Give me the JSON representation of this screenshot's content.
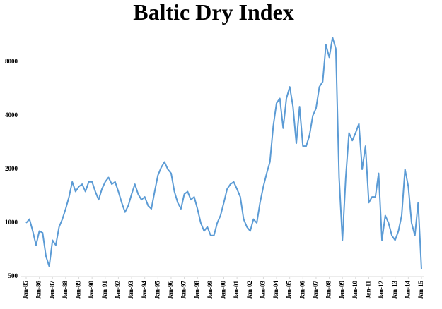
{
  "chart_data": {
    "type": "line",
    "title": "Baltic Dry Index",
    "log_scale": true,
    "grid": false,
    "ylim": [
      500,
      12000
    ],
    "yticks": [
      500,
      1000,
      2000,
      4000,
      8000
    ],
    "xticks": [
      "Jan-85",
      "Jan-86",
      "Jan-87",
      "Jan-88",
      "Jan-89",
      "Jan-90",
      "Jan-91",
      "Jan-92",
      "Jan-93",
      "Jan-94",
      "Jan-95",
      "Jan-96",
      "Jan-97",
      "Jan-98",
      "Jan-99",
      "Jan-00",
      "Jan-01",
      "Jan-02",
      "Jan-03",
      "Jan-04",
      "Jan-05",
      "Jan-06",
      "Jan-07",
      "Jan-08",
      "Jan-09",
      "Jan-10",
      "Jan-11",
      "Jan-12",
      "Jan-13",
      "Jan-14",
      "Jan-15"
    ],
    "x": [
      "Jan-85",
      "Apr-85",
      "Jul-85",
      "Oct-85",
      "Jan-86",
      "Apr-86",
      "Jul-86",
      "Oct-86",
      "Jan-87",
      "Apr-87",
      "Jul-87",
      "Oct-87",
      "Jan-88",
      "Apr-88",
      "Jul-88",
      "Oct-88",
      "Jan-89",
      "Apr-89",
      "Jul-89",
      "Oct-89",
      "Jan-90",
      "Apr-90",
      "Jul-90",
      "Oct-90",
      "Jan-91",
      "Apr-91",
      "Jul-91",
      "Oct-91",
      "Jan-92",
      "Apr-92",
      "Jul-92",
      "Oct-92",
      "Jan-93",
      "Apr-93",
      "Jul-93",
      "Oct-93",
      "Jan-94",
      "Apr-94",
      "Jul-94",
      "Oct-94",
      "Jan-95",
      "Apr-95",
      "Jul-95",
      "Oct-95",
      "Jan-96",
      "Apr-96",
      "Jul-96",
      "Oct-96",
      "Jan-97",
      "Apr-97",
      "Jul-97",
      "Oct-97",
      "Jan-98",
      "Apr-98",
      "Jul-98",
      "Oct-98",
      "Jan-99",
      "Apr-99",
      "Jul-99",
      "Oct-99",
      "Jan-00",
      "Apr-00",
      "Jul-00",
      "Oct-00",
      "Jan-01",
      "Apr-01",
      "Jul-01",
      "Oct-01",
      "Jan-02",
      "Apr-02",
      "Jul-02",
      "Oct-02",
      "Jan-03",
      "Apr-03",
      "Jul-03",
      "Oct-03",
      "Jan-04",
      "Apr-04",
      "Jul-04",
      "Oct-04",
      "Jan-05",
      "Apr-05",
      "Jul-05",
      "Oct-05",
      "Jan-06",
      "Apr-06",
      "Jul-06",
      "Oct-06",
      "Jan-07",
      "Apr-07",
      "Jul-07",
      "Oct-07",
      "Jan-08",
      "Apr-08",
      "Jul-08",
      "Oct-08",
      "Jan-09",
      "Apr-09",
      "Jul-09",
      "Oct-09",
      "Jan-10",
      "Apr-10",
      "Jul-10",
      "Oct-10",
      "Jan-11",
      "Apr-11",
      "Jul-11",
      "Oct-11",
      "Jan-12",
      "Apr-12",
      "Jul-12",
      "Oct-12",
      "Jan-13",
      "Apr-13",
      "Jul-13",
      "Oct-13",
      "Jan-14",
      "Apr-14",
      "Jul-14",
      "Oct-14",
      "Jan-15"
    ],
    "series": [
      {
        "name": "Baltic Dry Index",
        "color": "#5b9bd5",
        "values": [
          1000,
          1050,
          900,
          750,
          900,
          880,
          650,
          570,
          800,
          750,
          950,
          1050,
          1200,
          1400,
          1700,
          1500,
          1600,
          1650,
          1500,
          1700,
          1700,
          1500,
          1350,
          1550,
          1700,
          1800,
          1650,
          1700,
          1500,
          1300,
          1150,
          1250,
          1450,
          1650,
          1450,
          1350,
          1400,
          1250,
          1200,
          1500,
          1850,
          2050,
          2200,
          2000,
          1900,
          1500,
          1300,
          1200,
          1450,
          1500,
          1350,
          1400,
          1200,
          1000,
          900,
          950,
          850,
          850,
          1000,
          1100,
          1300,
          1550,
          1650,
          1700,
          1550,
          1400,
          1050,
          950,
          900,
          1050,
          1000,
          1300,
          1600,
          1900,
          2200,
          3500,
          4700,
          5000,
          3400,
          5000,
          5800,
          4500,
          2800,
          4500,
          2700,
          2700,
          3100,
          4000,
          4400,
          5800,
          6200,
          10000,
          8500,
          11000,
          9500,
          1800,
          800,
          1800,
          3200,
          2900,
          3200,
          3600,
          2000,
          2700,
          1300,
          1400,
          1400,
          1900,
          800,
          1100,
          1000,
          850,
          800,
          900,
          1100,
          2000,
          1600,
          1000,
          850,
          1300,
          550
        ]
      }
    ]
  }
}
